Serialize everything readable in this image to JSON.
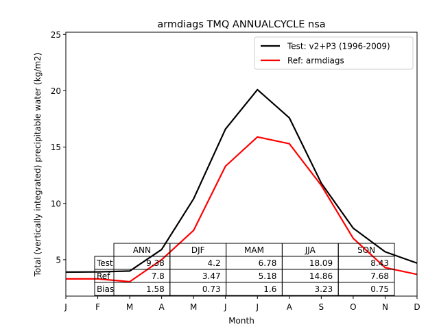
{
  "chart_data": {
    "type": "line",
    "title": "armdiags TMQ ANNUALCYCLE nsa",
    "xlabel": "Month",
    "ylabel": "Total (vertically integrated) precipitable water (kg/m2)",
    "x": [
      "J",
      "F",
      "M",
      "A",
      "M",
      "J",
      "J",
      "A",
      "S",
      "O",
      "N",
      "D"
    ],
    "yticks": [
      5,
      10,
      15,
      20,
      25
    ],
    "ylim": [
      1.77,
      25.2
    ],
    "grid": false,
    "legend_position": "top-right",
    "series": [
      {
        "name": "Test: v2+P3 (1996-2009)",
        "color": "#000000",
        "values": [
          3.9,
          3.92,
          4.0,
          5.9,
          10.4,
          16.6,
          20.1,
          17.6,
          11.8,
          7.8,
          5.7,
          4.7
        ]
      },
      {
        "name": "Ref: armdiags",
        "color": "#ff0000",
        "values": [
          3.3,
          3.3,
          3.05,
          5.0,
          7.6,
          13.3,
          15.9,
          15.3,
          11.6,
          6.9,
          4.3,
          3.7
        ]
      }
    ],
    "table": {
      "columns": [
        "ANN",
        "DJF",
        "MAM",
        "JJA",
        "SON"
      ],
      "rows": [
        {
          "label": "Test",
          "values": [
            "9.38",
            "4.2",
            "6.78",
            "18.09",
            "8.43"
          ]
        },
        {
          "label": "Ref",
          "values": [
            "7.8",
            "3.47",
            "5.18",
            "14.86",
            "7.68"
          ]
        },
        {
          "label": "Bias",
          "values": [
            "1.58",
            "0.73",
            "1.6",
            "3.23",
            "0.75"
          ]
        }
      ]
    }
  }
}
